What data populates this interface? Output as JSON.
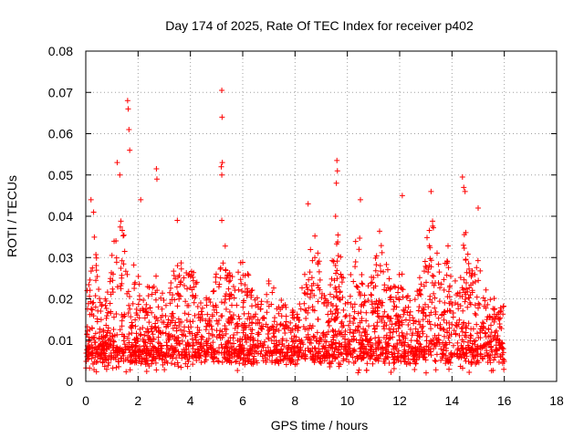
{
  "chart_data": {
    "type": "scatter",
    "title": "Day 174 of 2025, Rate Of TEC Index for receiver p402",
    "xlabel": "GPS time / hours",
    "ylabel": "ROTI / TECUs",
    "xlim": [
      0,
      18
    ],
    "ylim": [
      0,
      0.08
    ],
    "xticks": [
      0,
      2,
      4,
      6,
      8,
      10,
      12,
      14,
      16,
      18
    ],
    "yticks": [
      0,
      0.01,
      0.02,
      0.03,
      0.04,
      0.05,
      0.06,
      0.07,
      0.08
    ],
    "xtick_labels": [
      "0",
      "2",
      "4",
      "6",
      "8",
      "10",
      "12",
      "14",
      "16",
      "18"
    ],
    "ytick_labels": [
      "0",
      "0.01",
      "0.02",
      "0.03",
      "0.04",
      "0.05",
      "0.06",
      "0.07",
      "0.08"
    ],
    "grid": true,
    "marker": "+",
    "series_color": "#ff0000",
    "data_range_x": [
      0,
      16
    ],
    "series": [
      {
        "name": "ROTI",
        "peaks": [
          {
            "x": 0.2,
            "y": 0.044
          },
          {
            "x": 0.3,
            "y": 0.041
          },
          {
            "x": 1.2,
            "y": 0.053
          },
          {
            "x": 1.3,
            "y": 0.05
          },
          {
            "x": 1.6,
            "y": 0.068
          },
          {
            "x": 1.62,
            "y": 0.066
          },
          {
            "x": 1.65,
            "y": 0.061
          },
          {
            "x": 1.68,
            "y": 0.056
          },
          {
            "x": 2.1,
            "y": 0.044
          },
          {
            "x": 2.7,
            "y": 0.0515
          },
          {
            "x": 2.72,
            "y": 0.049
          },
          {
            "x": 3.5,
            "y": 0.039
          },
          {
            "x": 5.2,
            "y": 0.0705
          },
          {
            "x": 5.21,
            "y": 0.064
          },
          {
            "x": 5.22,
            "y": 0.053
          },
          {
            "x": 5.18,
            "y": 0.052
          },
          {
            "x": 5.2,
            "y": 0.05
          },
          {
            "x": 5.2,
            "y": 0.039
          },
          {
            "x": 8.5,
            "y": 0.043
          },
          {
            "x": 9.6,
            "y": 0.0535
          },
          {
            "x": 9.62,
            "y": 0.051
          },
          {
            "x": 9.58,
            "y": 0.048
          },
          {
            "x": 9.55,
            "y": 0.04
          },
          {
            "x": 10.5,
            "y": 0.044
          },
          {
            "x": 12.1,
            "y": 0.045
          },
          {
            "x": 13.2,
            "y": 0.046
          },
          {
            "x": 14.4,
            "y": 0.0495
          },
          {
            "x": 14.45,
            "y": 0.047
          },
          {
            "x": 14.5,
            "y": 0.046
          },
          {
            "x": 15.0,
            "y": 0.042
          }
        ]
      }
    ]
  }
}
